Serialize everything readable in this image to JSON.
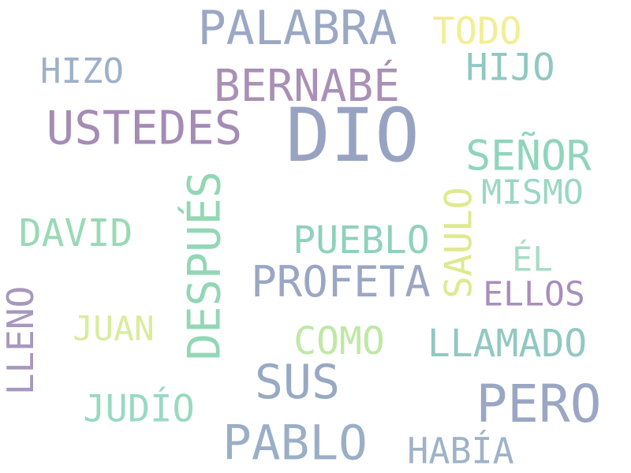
{
  "words": [
    {
      "id": "dio",
      "text": "DIO",
      "color": "#98a3c2"
    },
    {
      "id": "palabra",
      "text": "PALABRA",
      "color": "#9aa8c4"
    },
    {
      "id": "todo",
      "text": "TODO",
      "color": "#f2ee94"
    },
    {
      "id": "hizo",
      "text": "HIZO",
      "color": "#9eb0c8"
    },
    {
      "id": "bernabe",
      "text": "BERNABÉ",
      "color": "#a990b6"
    },
    {
      "id": "hijo",
      "text": "HIJO",
      "color": "#8fc9c2"
    },
    {
      "id": "ustedes",
      "text": "USTEDES",
      "color": "#a48cb5"
    },
    {
      "id": "senor",
      "text": "SEÑOR",
      "color": "#8fd5bc"
    },
    {
      "id": "mismo",
      "text": "MISMO",
      "color": "#9bd7c2"
    },
    {
      "id": "despues",
      "text": "DESPUÉS",
      "color": "#93d7b5"
    },
    {
      "id": "david",
      "text": "DAVID",
      "color": "#9ad9b6"
    },
    {
      "id": "saulo",
      "text": "SAULO",
      "color": "#dfe98f"
    },
    {
      "id": "pueblo",
      "text": "PUEBLO",
      "color": "#8fd1bc"
    },
    {
      "id": "el",
      "text": "ÉL",
      "color": "#a5dcc6"
    },
    {
      "id": "profeta",
      "text": "PROFETA",
      "color": "#9aa6c4"
    },
    {
      "id": "ellos",
      "text": "ELLOS",
      "color": "#a98dbb"
    },
    {
      "id": "lleno",
      "text": "LLENO",
      "color": "#a898bd"
    },
    {
      "id": "juan",
      "text": "JUAN",
      "color": "#d9ec9c"
    },
    {
      "id": "como",
      "text": "COMO",
      "color": "#bfe8a5"
    },
    {
      "id": "llamado",
      "text": "LLAMADO",
      "color": "#92c8c2"
    },
    {
      "id": "sus",
      "text": "SUS",
      "color": "#98a9c2"
    },
    {
      "id": "judio",
      "text": "JUDÍO",
      "color": "#99d9c2"
    },
    {
      "id": "pero",
      "text": "PERO",
      "color": "#9aa6c4"
    },
    {
      "id": "pablo",
      "text": "PABLO",
      "color": "#9aafc6"
    },
    {
      "id": "habia",
      "text": "HABÍA",
      "color": "#9fb2c8"
    }
  ]
}
